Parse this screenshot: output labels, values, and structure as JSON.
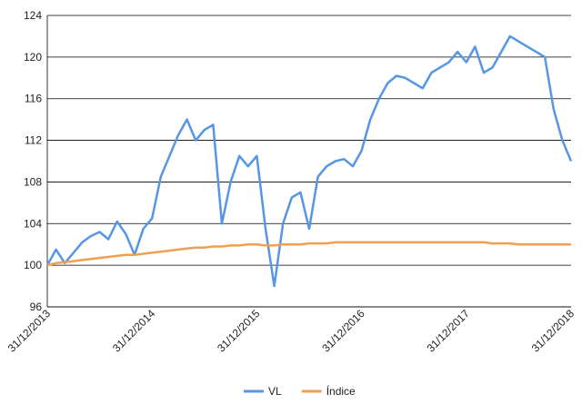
{
  "chart_data": {
    "type": "line",
    "categories": [
      "31/12/2013",
      null,
      null,
      null,
      null,
      null,
      null,
      null,
      null,
      null,
      null,
      null,
      "31/12/2014",
      null,
      null,
      null,
      null,
      null,
      null,
      null,
      null,
      null,
      null,
      null,
      "31/12/2015",
      null,
      null,
      null,
      null,
      null,
      null,
      null,
      null,
      null,
      null,
      null,
      "31/12/2016",
      null,
      null,
      null,
      null,
      null,
      null,
      null,
      null,
      null,
      null,
      null,
      "31/12/2017",
      null,
      null,
      null,
      null,
      null,
      null,
      null,
      null,
      null,
      null,
      null,
      "31/12/2018"
    ],
    "series": [
      {
        "name": "VL",
        "color": "#5596e6",
        "values": [
          100,
          101.5,
          100.2,
          101.2,
          102.2,
          102.8,
          103.2,
          102.5,
          104.2,
          103,
          101,
          103.5,
          104.5,
          108.5,
          110.5,
          112.5,
          114,
          112,
          113,
          113.5,
          104,
          108,
          110.5,
          109.5,
          110.5,
          103.5,
          98,
          104,
          106.5,
          107,
          103.5,
          108.5,
          109.5,
          110,
          110.2,
          109.5,
          111,
          114,
          116,
          117.5,
          118.2,
          118,
          117.5,
          117,
          118.5,
          119,
          119.5,
          120.5,
          119.5,
          121,
          118.5,
          119,
          120.5,
          122,
          121.5,
          121,
          120.5,
          120,
          115,
          112,
          110
        ]
      },
      {
        "name": "Índice",
        "color": "#f0a050",
        "values": [
          100,
          100.2,
          100.3,
          100.4,
          100.5,
          100.6,
          100.7,
          100.8,
          100.9,
          101,
          101,
          101.1,
          101.2,
          101.3,
          101.4,
          101.5,
          101.6,
          101.7,
          101.7,
          101.8,
          101.8,
          101.9,
          101.9,
          102,
          102,
          101.9,
          101.9,
          102,
          102,
          102,
          102.1,
          102.1,
          102.1,
          102.2,
          102.2,
          102.2,
          102.2,
          102.2,
          102.2,
          102.2,
          102.2,
          102.2,
          102.2,
          102.2,
          102.2,
          102.2,
          102.2,
          102.2,
          102.2,
          102.2,
          102.2,
          102.1,
          102.1,
          102.1,
          102,
          102,
          102,
          102,
          102,
          102,
          102
        ]
      }
    ],
    "ylim": [
      96,
      124
    ],
    "yticks": [
      96,
      100,
      104,
      108,
      112,
      116,
      120,
      124
    ],
    "grid": true
  }
}
